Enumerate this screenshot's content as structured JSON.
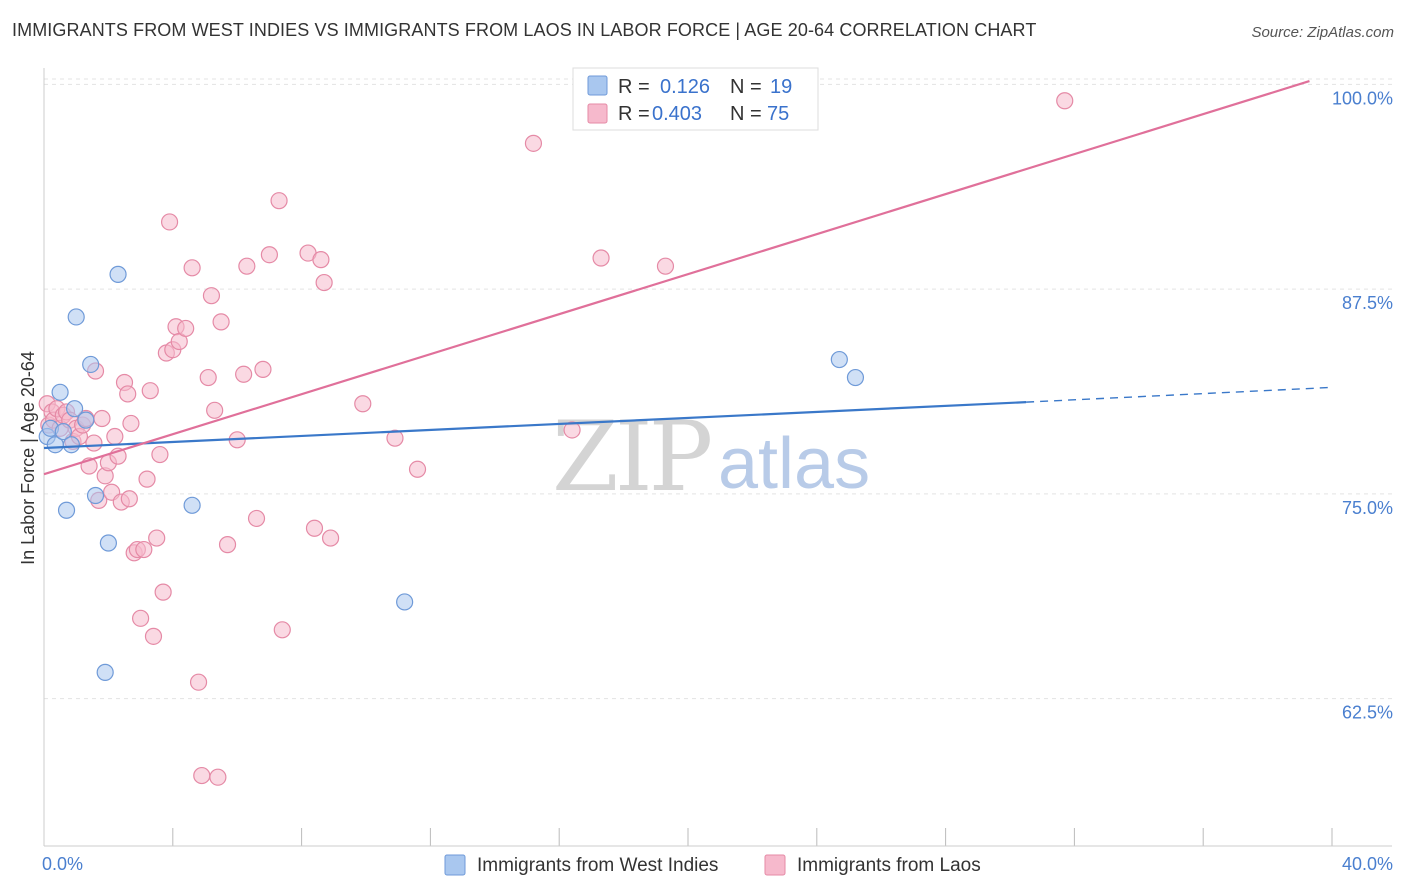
{
  "header": {
    "title": "IMMIGRANTS FROM WEST INDIES VS IMMIGRANTS FROM LAOS IN LABOR FORCE | AGE 20-64 CORRELATION CHART",
    "source": "Source: ZipAtlas.com"
  },
  "legend": {
    "r_label": "R =",
    "n_label": "N =",
    "series": [
      {
        "r": "0.126",
        "n": "19"
      },
      {
        "r": "0.403",
        "n": "75"
      }
    ]
  },
  "watermark": {
    "zip": "ZIP",
    "atlas": "atlas"
  },
  "colors": {
    "west_indies_fill": "#a9c7ef",
    "west_indies_stroke": "#6f9ad8",
    "west_indies_line": "#3a78c9",
    "laos_fill": "#f6b9cc",
    "laos_stroke": "#e58aa6",
    "laos_line": "#e0709a",
    "grid": "#e3e3e3",
    "axis_label": "#4a7fcf"
  },
  "chart_data": {
    "type": "scatter",
    "title": "IMMIGRANTS FROM WEST INDIES VS IMMIGRANTS FROM LAOS IN LABOR FORCE | AGE 20-64 CORRELATION CHART",
    "xlabel": "",
    "ylabel": "In Labor Force | Age 20-64",
    "xlim": [
      0,
      40
    ],
    "ylim": [
      53.5,
      101
    ],
    "x_tick_labels": [
      "0.0%",
      "40.0%"
    ],
    "y_ticks": [
      62.5,
      75.0,
      87.5,
      100.0
    ],
    "y_tick_labels": [
      "62.5%",
      "75.0%",
      "87.5%",
      "100.0%"
    ],
    "legend_position": "top-center",
    "series": [
      {
        "name": "Immigrants from West Indies",
        "r": 0.126,
        "n": 19,
        "trend": {
          "x": [
            0,
            30.5
          ],
          "y": [
            77.8,
            80.6
          ],
          "dashed_to": [
            40,
            81.5
          ]
        },
        "points": [
          [
            0.1,
            78.5
          ],
          [
            0.2,
            79.0
          ],
          [
            0.35,
            78.0
          ],
          [
            0.5,
            81.2
          ],
          [
            0.6,
            78.8
          ],
          [
            0.7,
            74.0
          ],
          [
            0.85,
            78.0
          ],
          [
            0.95,
            80.2
          ],
          [
            1.0,
            85.8
          ],
          [
            1.3,
            79.5
          ],
          [
            1.45,
            82.9
          ],
          [
            1.6,
            74.9
          ],
          [
            1.9,
            64.1
          ],
          [
            2.0,
            72.0
          ],
          [
            2.3,
            88.4
          ],
          [
            4.6,
            74.3
          ],
          [
            11.2,
            68.4
          ],
          [
            24.7,
            83.2
          ],
          [
            25.2,
            82.1
          ]
        ]
      },
      {
        "name": "Immigrants from Laos",
        "r": 0.403,
        "n": 75,
        "trend": {
          "x": [
            0,
            39.3
          ],
          "y": [
            76.2,
            100.2
          ]
        },
        "points": [
          [
            0.1,
            80.5
          ],
          [
            0.15,
            79.2
          ],
          [
            0.25,
            80.0
          ],
          [
            0.3,
            79.5
          ],
          [
            0.4,
            80.2
          ],
          [
            0.5,
            79.0
          ],
          [
            0.6,
            79.8
          ],
          [
            0.7,
            80.0
          ],
          [
            0.8,
            79.5
          ],
          [
            0.9,
            78.2
          ],
          [
            1.0,
            79.0
          ],
          [
            1.1,
            78.5
          ],
          [
            1.2,
            79.2
          ],
          [
            1.3,
            79.6
          ],
          [
            1.4,
            76.7
          ],
          [
            1.55,
            78.1
          ],
          [
            1.6,
            82.5
          ],
          [
            1.7,
            74.6
          ],
          [
            1.8,
            79.6
          ],
          [
            1.9,
            76.1
          ],
          [
            2.0,
            76.9
          ],
          [
            2.1,
            75.1
          ],
          [
            2.2,
            78.5
          ],
          [
            2.3,
            77.3
          ],
          [
            2.4,
            74.5
          ],
          [
            2.5,
            81.8
          ],
          [
            2.6,
            81.1
          ],
          [
            2.65,
            74.7
          ],
          [
            2.7,
            79.3
          ],
          [
            2.8,
            71.4
          ],
          [
            2.9,
            71.6
          ],
          [
            3.0,
            67.4
          ],
          [
            3.1,
            71.6
          ],
          [
            3.2,
            75.9
          ],
          [
            3.3,
            81.3
          ],
          [
            3.4,
            66.3
          ],
          [
            3.5,
            72.3
          ],
          [
            3.6,
            77.4
          ],
          [
            3.7,
            69.0
          ],
          [
            3.8,
            83.6
          ],
          [
            3.9,
            91.6
          ],
          [
            4.0,
            83.8
          ],
          [
            4.1,
            85.2
          ],
          [
            4.2,
            84.3
          ],
          [
            4.4,
            85.1
          ],
          [
            4.6,
            88.8
          ],
          [
            4.8,
            63.5
          ],
          [
            4.9,
            57.8
          ],
          [
            5.1,
            82.1
          ],
          [
            5.2,
            87.1
          ],
          [
            5.3,
            80.1
          ],
          [
            5.4,
            57.7
          ],
          [
            5.5,
            85.5
          ],
          [
            5.7,
            71.9
          ],
          [
            6.0,
            78.3
          ],
          [
            6.2,
            82.3
          ],
          [
            6.3,
            88.9
          ],
          [
            6.6,
            73.5
          ],
          [
            6.8,
            82.6
          ],
          [
            7.0,
            89.6
          ],
          [
            7.3,
            92.9
          ],
          [
            7.4,
            66.7
          ],
          [
            8.2,
            89.7
          ],
          [
            8.4,
            72.9
          ],
          [
            8.6,
            89.3
          ],
          [
            8.7,
            87.9
          ],
          [
            8.9,
            72.3
          ],
          [
            9.9,
            80.5
          ],
          [
            10.9,
            78.4
          ],
          [
            11.6,
            76.5
          ],
          [
            15.2,
            96.4
          ],
          [
            16.4,
            78.9
          ],
          [
            17.3,
            89.4
          ],
          [
            19.3,
            88.9
          ],
          [
            31.7,
            99.0
          ]
        ]
      }
    ]
  }
}
